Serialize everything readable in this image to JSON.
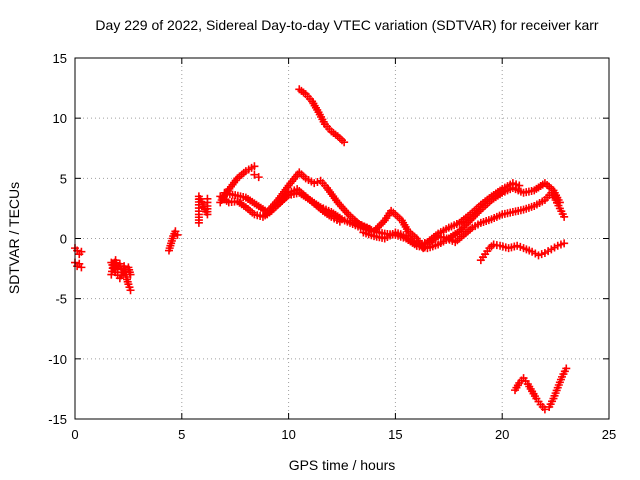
{
  "chart_data": {
    "type": "scatter",
    "title": "Day 229 of 2022, Sidereal Day-to-day VTEC variation (SDTVAR) for receiver karr",
    "xlabel": "GPS time / hours",
    "ylabel": "SDTVAR / TECUs",
    "xlim": [
      0,
      25
    ],
    "ylim": [
      -15,
      15
    ],
    "xticks": [
      0,
      5,
      10,
      15,
      20,
      25
    ],
    "yticks": [
      -15,
      -10,
      -5,
      0,
      5,
      10,
      15
    ],
    "grid": true,
    "marker": "+",
    "color": "#ff0000",
    "series": [
      {
        "name": "s1",
        "points": [
          [
            0.0,
            -0.8
          ],
          [
            0.1,
            -1.0
          ],
          [
            0.2,
            -1.3
          ],
          [
            0.3,
            -1.1
          ]
        ]
      },
      {
        "name": "s2",
        "points": [
          [
            0.0,
            -2.0
          ],
          [
            0.1,
            -2.3
          ],
          [
            0.2,
            -2.1
          ],
          [
            0.3,
            -2.4
          ]
        ]
      },
      {
        "name": "s3",
        "points": [
          [
            1.7,
            -3.0
          ],
          [
            1.8,
            -2.2
          ],
          [
            1.9,
            -1.8
          ],
          [
            2.0,
            -2.5
          ],
          [
            2.1,
            -2.1
          ],
          [
            2.2,
            -2.8
          ],
          [
            2.3,
            -2.3
          ],
          [
            2.4,
            -3.2
          ],
          [
            2.5,
            -3.8
          ],
          [
            2.6,
            -4.3
          ]
        ]
      },
      {
        "name": "s4",
        "points": [
          [
            1.7,
            -2.0
          ],
          [
            1.9,
            -2.8
          ],
          [
            2.1,
            -3.3
          ],
          [
            2.3,
            -2.6
          ],
          [
            2.5,
            -2.4
          ],
          [
            2.6,
            -3.0
          ]
        ]
      },
      {
        "name": "s5",
        "points": [
          [
            4.4,
            -1.0
          ],
          [
            4.5,
            -0.4
          ],
          [
            4.6,
            0.2
          ],
          [
            4.7,
            0.6
          ],
          [
            4.8,
            0.3
          ]
        ]
      },
      {
        "name": "s6",
        "points": [
          [
            5.8,
            1.3
          ],
          [
            5.8,
            2.0
          ],
          [
            5.8,
            2.8
          ],
          [
            5.8,
            3.5
          ],
          [
            6.2,
            2.0
          ],
          [
            6.2,
            2.7
          ],
          [
            6.2,
            3.3
          ]
        ]
      },
      {
        "name": "s7",
        "points": [
          [
            6.8,
            3.0
          ],
          [
            7.0,
            3.6
          ],
          [
            7.3,
            4.3
          ],
          [
            7.6,
            5.0
          ],
          [
            8.0,
            5.6
          ],
          [
            8.4,
            6.0
          ]
        ]
      },
      {
        "name": "s8",
        "points": [
          [
            6.8,
            3.5
          ],
          [
            7.2,
            3.0
          ],
          [
            7.6,
            3.1
          ],
          [
            8.0,
            2.6
          ],
          [
            8.4,
            2.0
          ],
          [
            8.8,
            1.8
          ],
          [
            9.2,
            2.3
          ],
          [
            9.6,
            3.0
          ],
          [
            10.0,
            3.8
          ],
          [
            10.4,
            4.1
          ],
          [
            10.8,
            3.5
          ],
          [
            11.2,
            2.9
          ],
          [
            11.6,
            2.3
          ],
          [
            12.0,
            1.8
          ],
          [
            12.4,
            1.4
          ]
        ]
      },
      {
        "name": "s9",
        "points": [
          [
            7.0,
            3.8
          ],
          [
            7.5,
            3.6
          ],
          [
            8.0,
            3.4
          ],
          [
            8.5,
            2.8
          ],
          [
            9.0,
            2.2
          ],
          [
            9.5,
            3.2
          ],
          [
            10.0,
            4.4
          ],
          [
            10.5,
            5.5
          ],
          [
            10.8,
            5.0
          ],
          [
            11.2,
            4.6
          ],
          [
            11.5,
            4.8
          ],
          [
            11.8,
            4.2
          ],
          [
            12.3,
            3.0
          ],
          [
            12.8,
            2.0
          ],
          [
            13.3,
            1.2
          ],
          [
            13.8,
            0.8
          ]
        ]
      },
      {
        "name": "s10",
        "points": [
          [
            8.4,
            5.3
          ],
          [
            8.6,
            5.1
          ]
        ]
      },
      {
        "name": "s11",
        "points": [
          [
            9.0,
            2.0
          ],
          [
            9.5,
            2.8
          ],
          [
            10.0,
            3.6
          ],
          [
            10.5,
            3.8
          ],
          [
            11.0,
            3.2
          ],
          [
            11.5,
            2.6
          ],
          [
            12.0,
            2.2
          ],
          [
            12.5,
            1.6
          ],
          [
            13.0,
            1.2
          ],
          [
            13.5,
            0.8
          ],
          [
            14.0,
            0.6
          ],
          [
            14.5,
            0.4
          ],
          [
            15.0,
            0.3
          ],
          [
            15.5,
            0.0
          ],
          [
            16.0,
            -0.6
          ],
          [
            16.5,
            -0.3
          ],
          [
            17.0,
            0.4
          ],
          [
            17.5,
            0.9
          ],
          [
            18.0,
            1.3
          ],
          [
            18.5,
            2.0
          ],
          [
            19.0,
            2.8
          ],
          [
            19.5,
            3.5
          ],
          [
            20.0,
            4.1
          ],
          [
            20.5,
            4.6
          ],
          [
            20.8,
            4.4
          ]
        ]
      },
      {
        "name": "s12",
        "points": [
          [
            10.5,
            12.4
          ],
          [
            10.8,
            12.0
          ],
          [
            11.1,
            11.4
          ],
          [
            11.4,
            10.5
          ],
          [
            11.7,
            9.5
          ],
          [
            12.0,
            8.9
          ],
          [
            12.3,
            8.5
          ],
          [
            12.6,
            8.0
          ]
        ]
      },
      {
        "name": "s13",
        "points": [
          [
            13.0,
            1.5
          ],
          [
            13.5,
            1.0
          ],
          [
            14.0,
            0.6
          ],
          [
            14.5,
            1.5
          ],
          [
            14.8,
            2.3
          ],
          [
            15.0,
            2.0
          ],
          [
            15.3,
            1.5
          ],
          [
            15.6,
            0.6
          ],
          [
            16.0,
            0.0
          ],
          [
            16.3,
            -0.8
          ],
          [
            16.6,
            -0.3
          ],
          [
            17.0,
            0.2
          ],
          [
            17.4,
            0.0
          ],
          [
            17.8,
            -0.3
          ],
          [
            18.2,
            0.3
          ],
          [
            18.6,
            0.9
          ],
          [
            19.0,
            1.3
          ],
          [
            19.5,
            1.6
          ],
          [
            20.0,
            2.0
          ],
          [
            20.5,
            2.2
          ],
          [
            21.0,
            2.4
          ],
          [
            21.5,
            2.7
          ],
          [
            22.0,
            3.2
          ],
          [
            22.3,
            3.8
          ],
          [
            22.5,
            3.2
          ],
          [
            22.7,
            2.5
          ],
          [
            22.9,
            1.8
          ]
        ]
      },
      {
        "name": "s14",
        "points": [
          [
            13.5,
            0.5
          ],
          [
            14.0,
            0.2
          ],
          [
            14.5,
            0.0
          ],
          [
            15.0,
            0.5
          ],
          [
            15.5,
            0.2
          ],
          [
            16.0,
            -0.6
          ],
          [
            16.5,
            -0.8
          ],
          [
            17.0,
            -0.5
          ],
          [
            17.5,
            0.0
          ],
          [
            18.0,
            0.6
          ],
          [
            18.5,
            1.5
          ],
          [
            19.0,
            2.4
          ],
          [
            19.5,
            3.2
          ],
          [
            20.0,
            3.8
          ],
          [
            20.5,
            4.2
          ],
          [
            21.0,
            3.8
          ],
          [
            21.5,
            4.0
          ],
          [
            22.0,
            4.6
          ],
          [
            22.2,
            4.3
          ],
          [
            22.4,
            4.0
          ],
          [
            22.7,
            3.0
          ]
        ]
      },
      {
        "name": "s15",
        "points": [
          [
            19.0,
            -1.8
          ],
          [
            19.2,
            -1.3
          ],
          [
            19.4,
            -0.8
          ],
          [
            19.6,
            -0.5
          ],
          [
            19.9,
            -0.6
          ],
          [
            20.3,
            -0.8
          ],
          [
            20.7,
            -0.6
          ],
          [
            21.0,
            -0.8
          ],
          [
            21.4,
            -1.1
          ],
          [
            21.7,
            -1.4
          ],
          [
            22.0,
            -1.2
          ],
          [
            22.3,
            -0.9
          ],
          [
            22.6,
            -0.6
          ],
          [
            22.9,
            -0.4
          ]
        ]
      },
      {
        "name": "s16",
        "points": [
          [
            20.6,
            -12.6
          ],
          [
            20.8,
            -12.0
          ],
          [
            21.0,
            -11.6
          ],
          [
            21.2,
            -12.1
          ],
          [
            21.4,
            -12.7
          ],
          [
            21.6,
            -13.3
          ],
          [
            21.8,
            -13.8
          ],
          [
            22.0,
            -14.2
          ],
          [
            22.2,
            -14.0
          ],
          [
            22.4,
            -13.3
          ],
          [
            22.6,
            -12.4
          ],
          [
            22.8,
            -11.5
          ],
          [
            23.0,
            -10.8
          ]
        ]
      }
    ]
  }
}
